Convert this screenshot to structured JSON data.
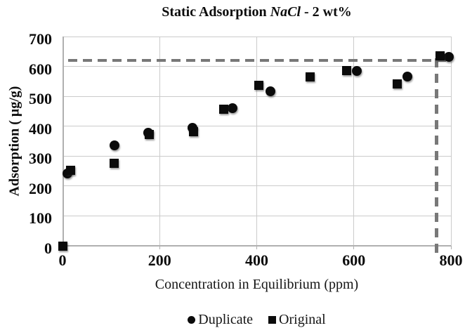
{
  "title": {
    "prefix": "Static Adsorption ",
    "italic": "NaCl",
    "suffix": " - 2 wt%"
  },
  "chart_data": {
    "type": "scatter",
    "title": "Static Adsorption NaCl - 2 wt%",
    "xlabel": "Concentration in Equilibrium (ppm)",
    "ylabel": "Adsorption ( μg/g)",
    "xlim": [
      0,
      800
    ],
    "ylim": [
      0,
      700
    ],
    "x_ticks": [
      0,
      200,
      400,
      600,
      800
    ],
    "y_ticks": [
      0,
      100,
      200,
      300,
      400,
      500,
      600,
      700
    ],
    "grid": true,
    "legend_position": "bottom",
    "series": [
      {
        "name": "Duplicate",
        "marker": "circle",
        "points": [
          [
            10,
            241
          ],
          [
            107,
            335
          ],
          [
            177,
            379
          ],
          [
            268,
            394
          ],
          [
            350,
            460
          ],
          [
            428,
            517
          ],
          [
            606,
            585
          ],
          [
            711,
            566
          ],
          [
            795,
            632
          ]
        ]
      },
      {
        "name": "Original",
        "marker": "square",
        "points": [
          [
            0,
            0
          ],
          [
            16,
            252
          ],
          [
            107,
            277
          ],
          [
            178,
            372
          ],
          [
            270,
            382
          ],
          [
            332,
            458
          ],
          [
            405,
            537
          ],
          [
            510,
            564
          ],
          [
            585,
            587
          ],
          [
            690,
            541
          ],
          [
            778,
            636
          ]
        ]
      }
    ],
    "reference_lines": {
      "style": "dashed",
      "color": "#787878",
      "horizontal": {
        "y": 620,
        "x_start": 0,
        "x_end": 800
      },
      "vertical": {
        "x": 770,
        "y_start": 627,
        "y_end": -28
      }
    }
  },
  "legend": {
    "items": [
      {
        "label": "Duplicate",
        "marker": "circle"
      },
      {
        "label": "Original",
        "marker": "square"
      }
    ]
  },
  "colors": {
    "marker": "#0b0b0b",
    "dash": "#787878",
    "grid": "#cbcbcb",
    "axis": "#b0b0b0",
    "text": "#0c0c0c"
  }
}
